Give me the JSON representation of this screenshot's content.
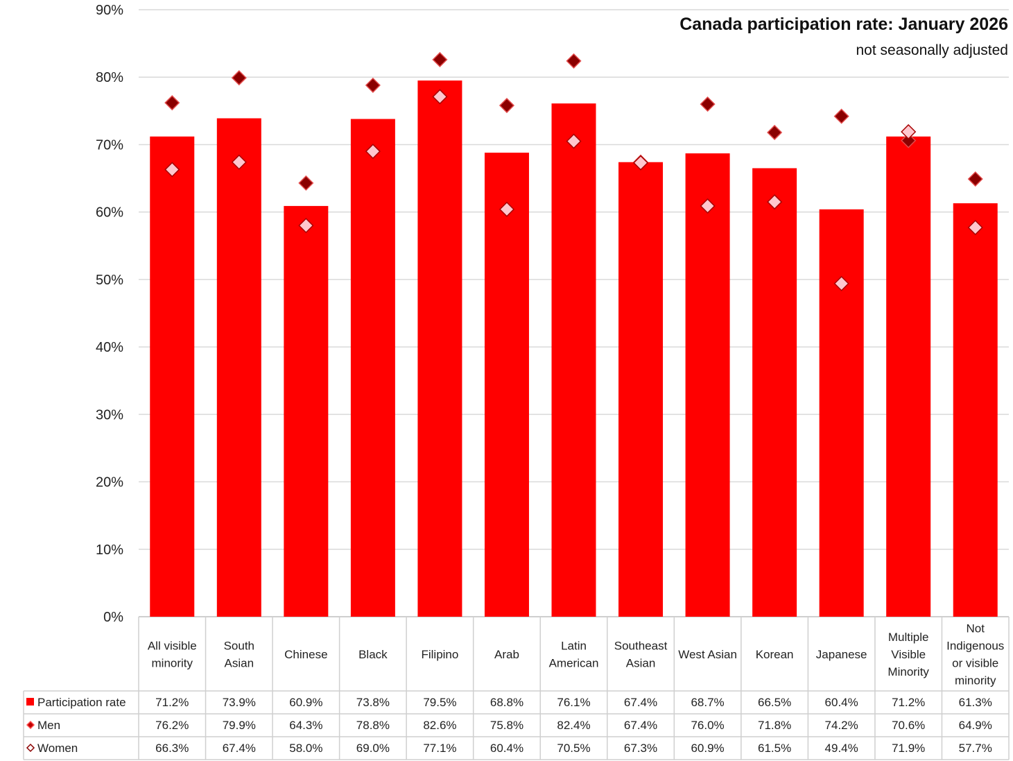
{
  "chart_data": {
    "type": "bar",
    "title": "Canada participation rate: January 2026",
    "subtitle": "not seasonally adjusted",
    "categories": [
      "All visible minority",
      "South Asian",
      "Chinese",
      "Black",
      "Filipino",
      "Arab",
      "Latin American",
      "Southeast Asian",
      "West Asian",
      "Korean",
      "Japanese",
      "Multiple Visible Minority",
      "Not Indigenous or visible minority"
    ],
    "category_lines": [
      [
        "All visible",
        "minority"
      ],
      [
        "South",
        "Asian"
      ],
      [
        "Chinese"
      ],
      [
        "Black"
      ],
      [
        "Filipino"
      ],
      [
        "Arab"
      ],
      [
        "Latin",
        "American"
      ],
      [
        "Southeast",
        "Asian"
      ],
      [
        "West Asian"
      ],
      [
        "Korean"
      ],
      [
        "Japanese"
      ],
      [
        "Multiple",
        "Visible",
        "Minority"
      ],
      [
        "Not",
        "Indigenous",
        "or visible",
        "minority"
      ]
    ],
    "series": [
      {
        "name": "Participation rate",
        "type": "bar",
        "color": "#ff0000",
        "values": [
          71.2,
          73.9,
          60.9,
          73.8,
          79.5,
          68.8,
          76.1,
          67.4,
          68.7,
          66.5,
          60.4,
          71.2,
          61.3
        ],
        "labels": [
          "71.2%",
          "73.9%",
          "60.9%",
          "73.8%",
          "79.5%",
          "68.8%",
          "76.1%",
          "67.4%",
          "68.7%",
          "66.5%",
          "60.4%",
          "71.2%",
          "61.3%"
        ]
      },
      {
        "name": "Men",
        "type": "marker",
        "marker": "diamond",
        "color": "#8b0000",
        "values": [
          76.2,
          79.9,
          64.3,
          78.8,
          82.6,
          75.8,
          82.4,
          67.4,
          76.0,
          71.8,
          74.2,
          70.6,
          64.9
        ],
        "labels": [
          "76.2%",
          "79.9%",
          "64.3%",
          "78.8%",
          "82.6%",
          "75.8%",
          "82.4%",
          "67.4%",
          "76.0%",
          "71.8%",
          "74.2%",
          "70.6%",
          "64.9%"
        ]
      },
      {
        "name": "Women",
        "type": "marker",
        "marker": "diamond",
        "color": "#ffc7ce",
        "values": [
          66.3,
          67.4,
          58.0,
          69.0,
          77.1,
          60.4,
          70.5,
          67.3,
          60.9,
          61.5,
          49.4,
          71.9,
          57.7
        ],
        "labels": [
          "66.3%",
          "67.4%",
          "58.0%",
          "69.0%",
          "77.1%",
          "60.4%",
          "70.5%",
          "67.3%",
          "60.9%",
          "61.5%",
          "49.4%",
          "71.9%",
          "57.7%"
        ]
      }
    ],
    "ylim": [
      0,
      90
    ],
    "yticks": [
      0,
      10,
      20,
      30,
      40,
      50,
      60,
      70,
      80,
      90
    ],
    "ytick_labels": [
      "0%",
      "10%",
      "20%",
      "30%",
      "40%",
      "50%",
      "60%",
      "70%",
      "80%",
      "90%"
    ],
    "grid": true,
    "data_table": true
  }
}
